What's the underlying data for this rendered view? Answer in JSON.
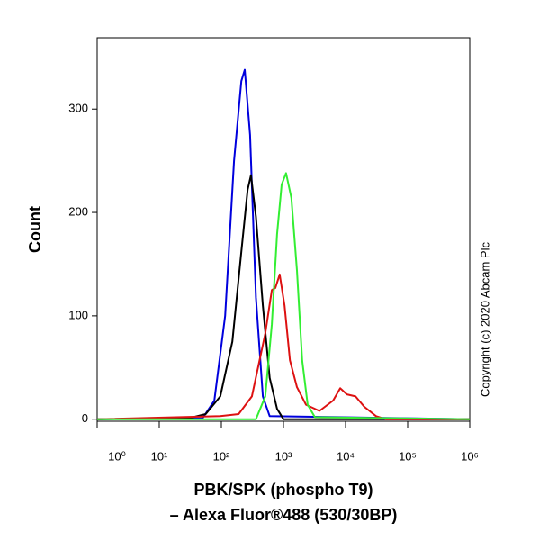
{
  "chart_data": {
    "type": "line",
    "ylabel": "Count",
    "xlabel": [
      "PBK/SPK (phospho T9)",
      "– Alexa Fluor®488 (530/30BP)"
    ],
    "annotation": "Copyright (c) 2020 Abcam Plc",
    "log_x": true,
    "xlim": [
      1,
      1000000
    ],
    "ylim": [
      -2,
      369
    ],
    "xticks": [
      {
        "value": 1,
        "label": "10⁰"
      },
      {
        "value": 10,
        "label": "10¹"
      },
      {
        "value": 100,
        "label": "10²"
      },
      {
        "value": 1000,
        "label": "10³"
      },
      {
        "value": 10000,
        "label": "10⁴"
      },
      {
        "value": 100000,
        "label": "10⁵"
      },
      {
        "value": 1000000,
        "label": "10⁶"
      }
    ],
    "yticks": [
      0,
      100,
      200,
      300
    ],
    "series": [
      {
        "name": "blue",
        "color": "#0000dd",
        "x": [
          1,
          50,
          77,
          115,
          160,
          210,
          238,
          290,
          360,
          465,
          600,
          1000000
        ],
        "values": [
          0,
          1,
          18,
          100,
          250,
          327,
          338,
          275,
          118,
          22,
          3,
          0
        ]
      },
      {
        "name": "black",
        "color": "#000000",
        "x": [
          1,
          30,
          56,
          96,
          150,
          210,
          265,
          300,
          360,
          465,
          600,
          790,
          1000,
          1000000
        ],
        "values": [
          0,
          1,
          5,
          22,
          75,
          162,
          222,
          236,
          196,
          110,
          40,
          10,
          0,
          0
        ]
      },
      {
        "name": "red",
        "color": "#dd1111",
        "x": [
          1,
          96,
          190,
          310,
          510,
          650,
          740,
          870,
          1040,
          1270,
          1650,
          2300,
          3800,
          6300,
          8200,
          10500,
          14500,
          20000,
          31000,
          45000,
          1000000
        ],
        "values": [
          0,
          3,
          5,
          22,
          83,
          125,
          127,
          140,
          110,
          57,
          31,
          14,
          8,
          18,
          30,
          24,
          22,
          12,
          3,
          0,
          0
        ]
      },
      {
        "name": "green",
        "color": "#33ee33",
        "x": [
          1,
          360,
          510,
          650,
          790,
          935,
          1100,
          1340,
          1650,
          2000,
          2450,
          3200,
          1000000
        ],
        "values": [
          0,
          0,
          22,
          92,
          179,
          227,
          238,
          214,
          144,
          57,
          14,
          2,
          0
        ]
      }
    ]
  }
}
